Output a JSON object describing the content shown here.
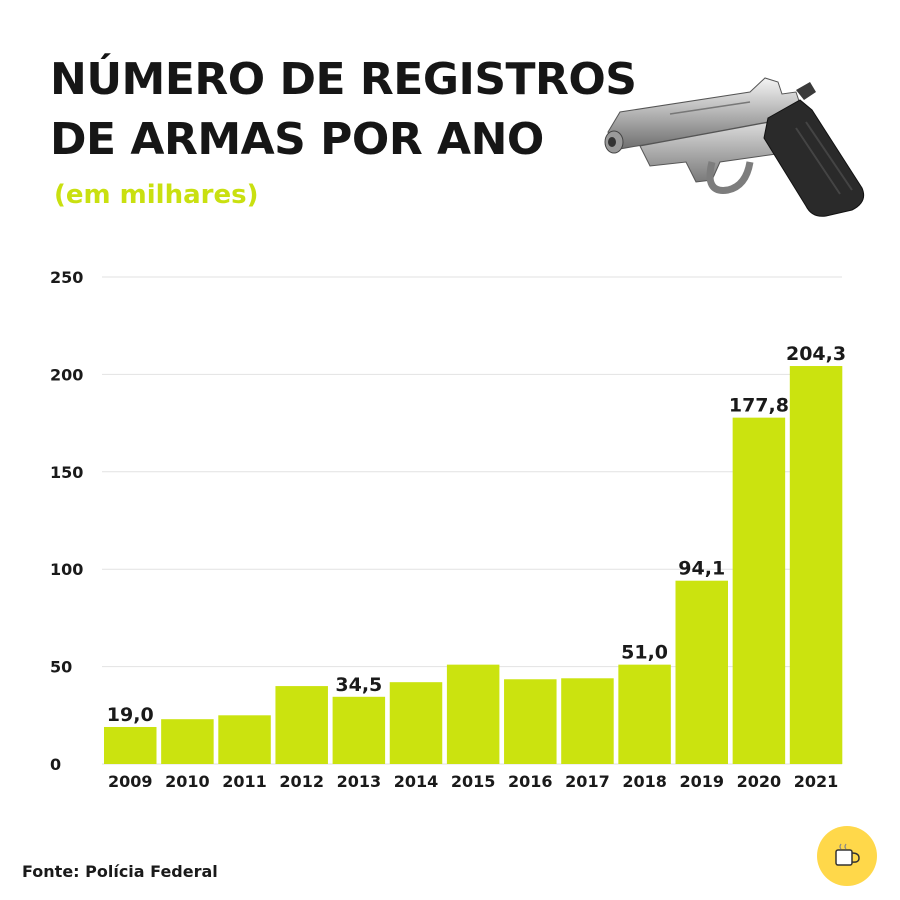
{
  "header": {
    "title_line1": "NÚMERO DE REGISTROS",
    "title_line2": "DE ARMAS POR ANO",
    "subtitle": "(em milhares)"
  },
  "source": "Fonte: Polícia Federal",
  "icons": {
    "illustration": "pistol-illustration",
    "badge": "coffee-cup-icon"
  },
  "colors": {
    "bar": "#cbe30f",
    "subtitle": "#c9e010",
    "grid": "#e2e2e2",
    "text": "#1a1a1a",
    "badge": "#ffd84a"
  },
  "chart_data": {
    "type": "bar",
    "categories": [
      "2009",
      "2010",
      "2011",
      "2012",
      "2013",
      "2014",
      "2015",
      "2016",
      "2017",
      "2018",
      "2019",
      "2020",
      "2021"
    ],
    "values": [
      19.0,
      23,
      25,
      40,
      34.5,
      42,
      51,
      43.5,
      44,
      51.0,
      94.1,
      177.8,
      204.3
    ],
    "data_labels": [
      "19,0",
      "",
      "",
      "",
      "34,5",
      "",
      "",
      "",
      "",
      "51,0",
      "94,1",
      "177,8",
      "204,3"
    ],
    "ylim": [
      0,
      250
    ],
    "yticks": [
      0,
      50,
      100,
      150,
      200,
      250
    ],
    "grid": true,
    "title": "NÚMERO DE REGISTROS DE ARMAS POR ANO",
    "subtitle": "(em milhares)",
    "xlabel": "",
    "ylabel": ""
  }
}
